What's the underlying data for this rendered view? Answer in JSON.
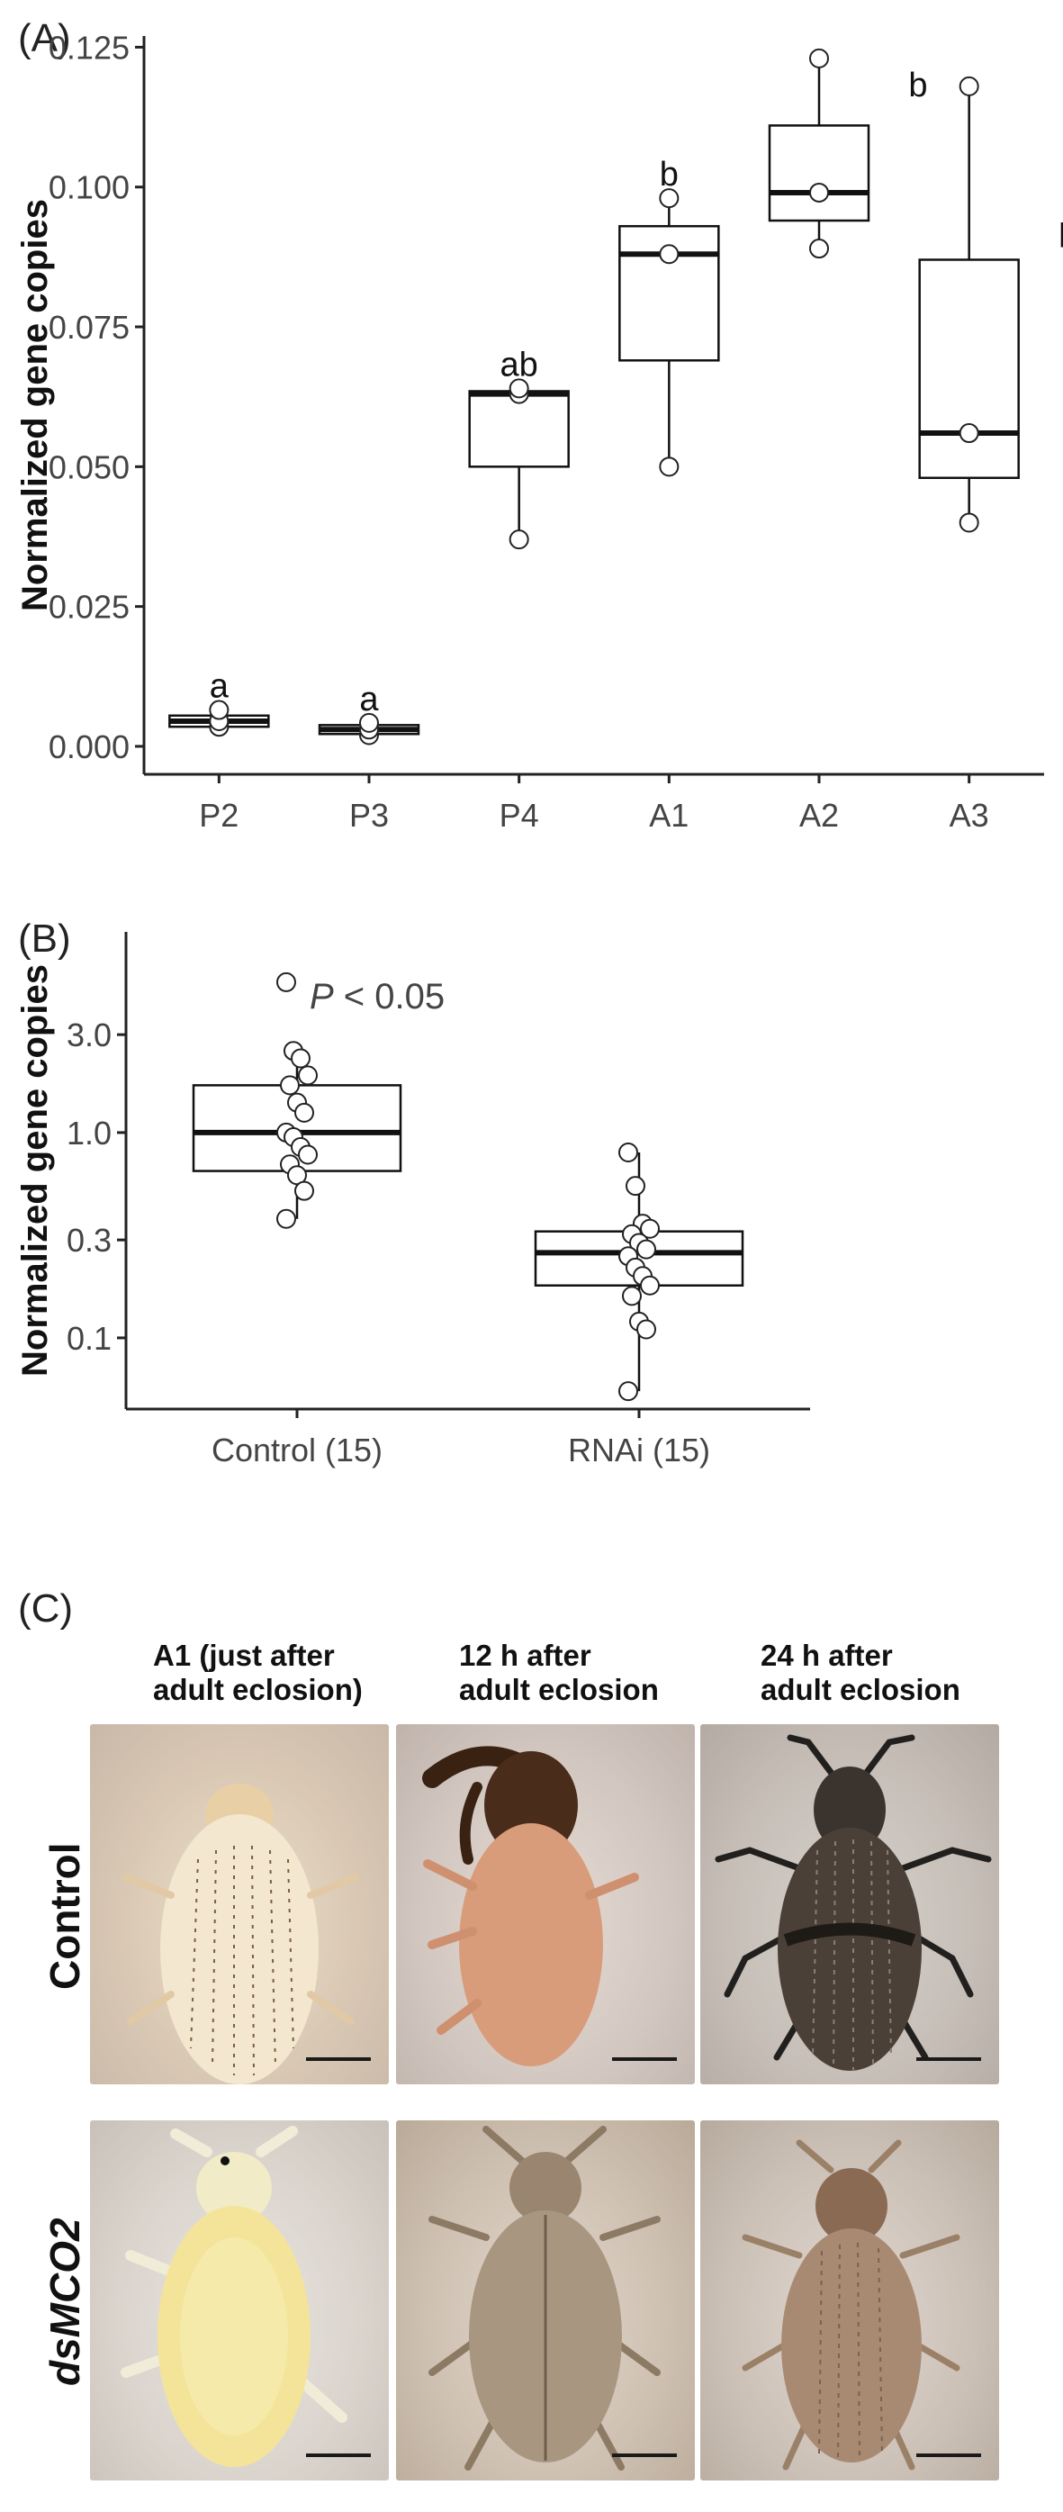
{
  "panel_labels": {
    "a": "(A)",
    "b": "(B)",
    "c": "(C)"
  },
  "chart_data": [
    {
      "type": "box",
      "panel": "(A)",
      "ylabel": "Normalized gene copies",
      "xlabel": "",
      "categories": [
        "P2",
        "P3",
        "P4",
        "A1",
        "A2",
        "A3"
      ],
      "ylim": [
        -0.005,
        0.127
      ],
      "yticks": [
        0.0,
        0.025,
        0.05,
        0.075,
        0.1,
        0.125
      ],
      "ytick_labels": [
        "0.000",
        "0.025",
        "0.050",
        "0.075",
        "0.100",
        "0.125"
      ],
      "boxes": [
        {
          "category": "P2",
          "min": 0.0035,
          "q1": 0.0035,
          "median": 0.0045,
          "q3": 0.0055,
          "max": 0.0065,
          "points": [
            0.0035,
            0.0045,
            0.0065
          ],
          "group_label": "a"
        },
        {
          "category": "P3",
          "min": 0.002,
          "q1": 0.0022,
          "median": 0.003,
          "q3": 0.0038,
          "max": 0.0042,
          "points": [
            0.002,
            0.003,
            0.0042
          ],
          "group_label": "a"
        },
        {
          "category": "P4",
          "min": 0.037,
          "q1": 0.05,
          "median": 0.063,
          "q3": 0.0635,
          "max": 0.064,
          "points": [
            0.037,
            0.063,
            0.064
          ],
          "group_label": "ab"
        },
        {
          "category": "A1",
          "min": 0.05,
          "q1": 0.069,
          "median": 0.088,
          "q3": 0.093,
          "max": 0.098,
          "points": [
            0.05,
            0.088,
            0.098
          ],
          "group_label": "b"
        },
        {
          "category": "A2",
          "min": 0.089,
          "q1": 0.094,
          "median": 0.099,
          "q3": 0.111,
          "max": 0.123,
          "points": [
            0.089,
            0.099,
            0.123
          ],
          "group_label": "b"
        },
        {
          "category": "A3",
          "min": 0.04,
          "q1": 0.048,
          "median": 0.056,
          "q3": 0.087,
          "max": 0.118,
          "points": [
            0.04,
            0.056,
            0.118
          ],
          "group_label": "b"
        }
      ],
      "grid": false
    },
    {
      "type": "box",
      "panel": "(B)",
      "ylabel": "Normalized gene copies",
      "xlabel": "",
      "yscale": "log",
      "categories": [
        "Control (15)",
        "RNAi (15)"
      ],
      "ylim": [
        0.045,
        9.5
      ],
      "yticks": [
        0.1,
        0.3,
        1.0,
        3.0
      ],
      "ytick_labels": [
        "0.1",
        "0.3",
        "1.0",
        "3.0"
      ],
      "annotation": {
        "italic": "P",
        "rest": " < 0.05"
      },
      "boxes": [
        {
          "category": "Control (15)",
          "min": 0.38,
          "q1": 0.65,
          "median": 1.0,
          "q3": 1.7,
          "max": 2.5,
          "outliers": [
            5.4
          ],
          "points": [
            5.4,
            2.5,
            2.3,
            1.9,
            1.7,
            1.4,
            1.25,
            1.0,
            0.95,
            0.85,
            0.78,
            0.7,
            0.62,
            0.52,
            0.38
          ]
        },
        {
          "category": "RNAi (15)",
          "min": 0.055,
          "q1": 0.18,
          "median": 0.26,
          "q3": 0.33,
          "max": 0.8,
          "points": [
            0.8,
            0.55,
            0.36,
            0.34,
            0.32,
            0.29,
            0.27,
            0.25,
            0.22,
            0.2,
            0.18,
            0.16,
            0.12,
            0.11,
            0.055
          ]
        }
      ],
      "grid": false
    }
  ],
  "photo_panel": {
    "columns": [
      "A1 (just after\nadult eclosion)",
      "12 h after\nadult eclosion",
      "24 h after\nadult eclosion"
    ],
    "rows": [
      {
        "label": "Control",
        "italic": false
      },
      {
        "label": "dsMCO2",
        "italic": true
      }
    ]
  }
}
